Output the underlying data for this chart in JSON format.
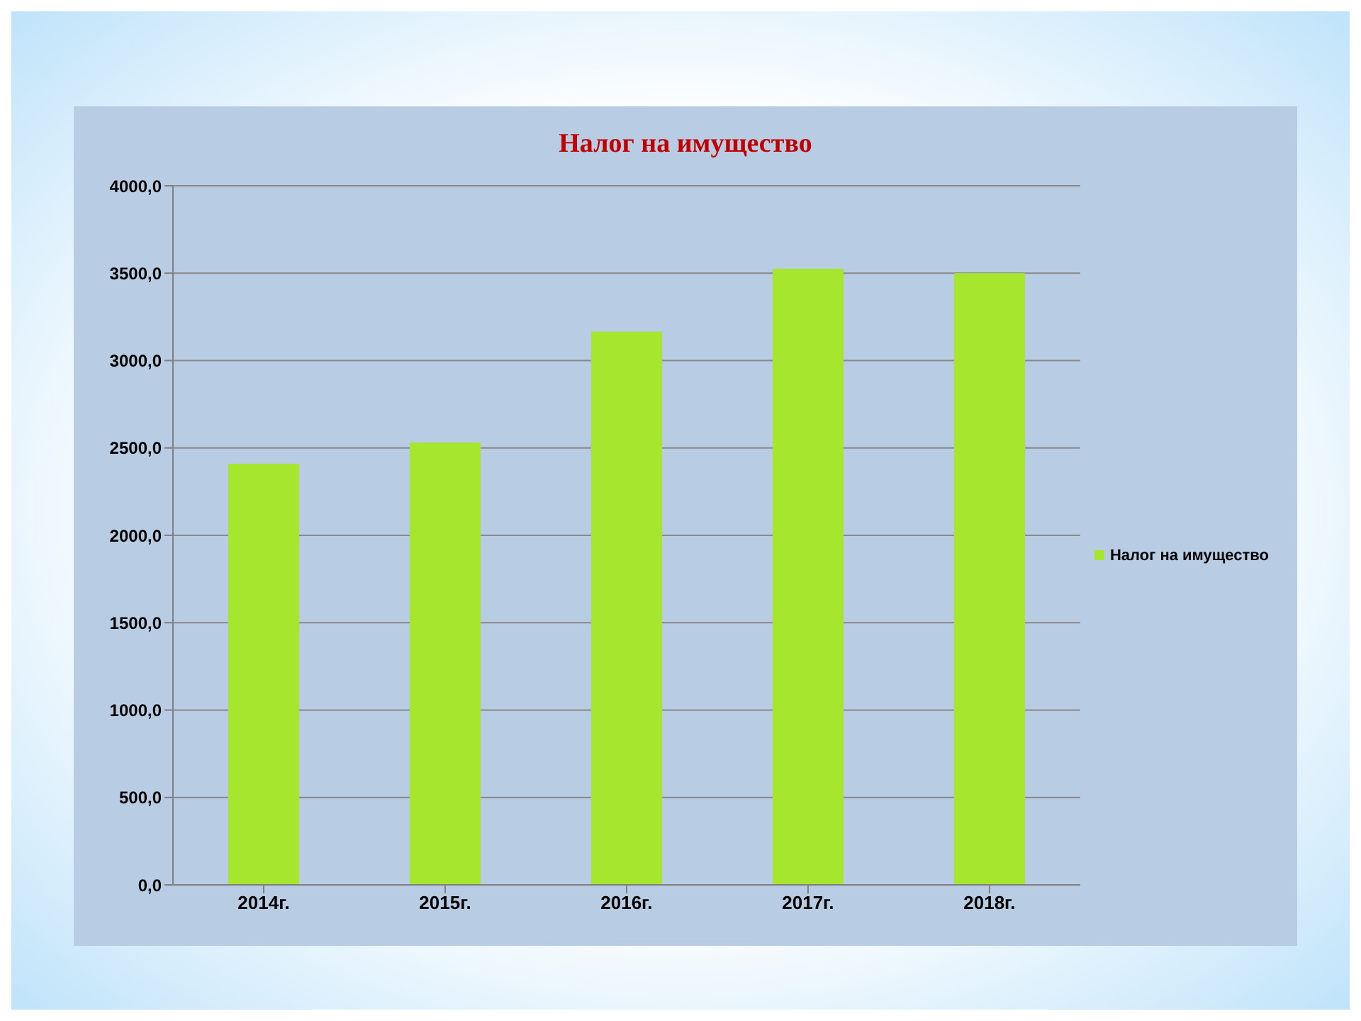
{
  "chart_data": {
    "type": "bar",
    "title": "Налог на имущество",
    "categories": [
      "2014г.",
      "2015г.",
      "2016г.",
      "2017г.",
      "2018г."
    ],
    "series": [
      {
        "name": "Налог на имущество",
        "color": "#a6e62e",
        "values": [
          2410,
          2530,
          3165,
          3525,
          3500
        ]
      }
    ],
    "ylim": [
      0,
      4000
    ],
    "yticks": [
      {
        "value": 0,
        "label": "0,0"
      },
      {
        "value": 500,
        "label": "500,0"
      },
      {
        "value": 1000,
        "label": "1000,0"
      },
      {
        "value": 1500,
        "label": "1500,0"
      },
      {
        "value": 2000,
        "label": "2000,0"
      },
      {
        "value": 2500,
        "label": "2500,0"
      },
      {
        "value": 3000,
        "label": "3000,0"
      },
      {
        "value": 3500,
        "label": "3500,0"
      },
      {
        "value": 4000,
        "label": "4000,0"
      }
    ],
    "grid": "y",
    "legend": "right"
  }
}
